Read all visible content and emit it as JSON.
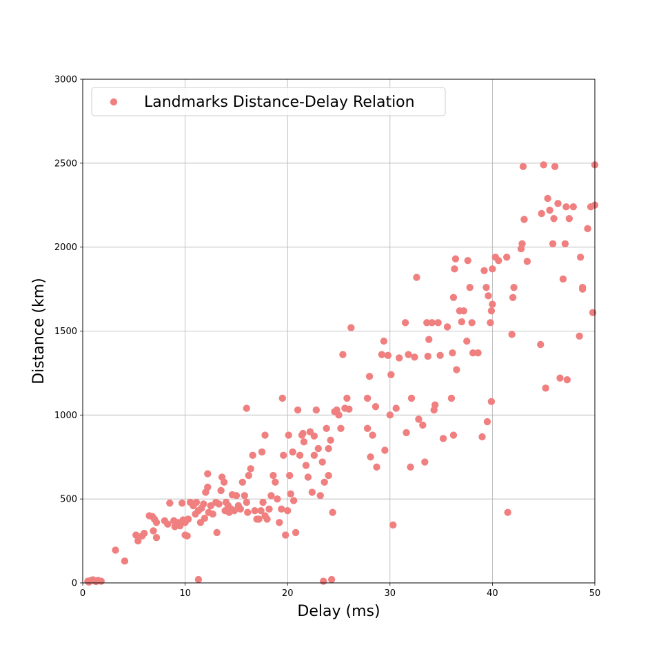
{
  "chart_data": {
    "type": "scatter",
    "title": "",
    "xlabel": "Delay (ms)",
    "ylabel": "Distance (km)",
    "xlim": [
      0,
      50
    ],
    "ylim": [
      0,
      3000
    ],
    "xticks": [
      "0",
      "10",
      "20",
      "30",
      "40",
      "50"
    ],
    "yticks": [
      "0",
      "500",
      "1000",
      "1500",
      "2000",
      "2500",
      "3000"
    ],
    "grid": true,
    "legend_position": "top-left",
    "series": [
      {
        "name": "Landmarks Distance-Delay Relation",
        "color": "#f08080",
        "points": [
          [
            0.5,
            10
          ],
          [
            0.8,
            15
          ],
          [
            1.0,
            18
          ],
          [
            1.2,
            12
          ],
          [
            1.5,
            15
          ],
          [
            1.8,
            10
          ],
          [
            0.6,
            5
          ],
          [
            1.3,
            8
          ],
          [
            3.2,
            195
          ],
          [
            4.1,
            130
          ],
          [
            5.2,
            285
          ],
          [
            5.4,
            250
          ],
          [
            5.8,
            280
          ],
          [
            6.0,
            295
          ],
          [
            6.5,
            400
          ],
          [
            6.8,
            395
          ],
          [
            7.0,
            380
          ],
          [
            7.2,
            360
          ],
          [
            6.9,
            310
          ],
          [
            7.2,
            270
          ],
          [
            8.0,
            370
          ],
          [
            8.3,
            350
          ],
          [
            8.5,
            475
          ],
          [
            8.9,
            370
          ],
          [
            9.0,
            335
          ],
          [
            9.3,
            360
          ],
          [
            9.5,
            340
          ],
          [
            9.7,
            475
          ],
          [
            9.8,
            375
          ],
          [
            10.0,
            360
          ],
          [
            10.0,
            285
          ],
          [
            10.2,
            280
          ],
          [
            10.3,
            380
          ],
          [
            10.5,
            480
          ],
          [
            10.8,
            460
          ],
          [
            11.0,
            410
          ],
          [
            11.1,
            480
          ],
          [
            11.3,
            430
          ],
          [
            11.5,
            360
          ],
          [
            11.6,
            445
          ],
          [
            11.8,
            470
          ],
          [
            11.9,
            385
          ],
          [
            12.0,
            540
          ],
          [
            12.2,
            570
          ],
          [
            12.3,
            420
          ],
          [
            12.5,
            460
          ],
          [
            12.7,
            410
          ],
          [
            13.0,
            480
          ],
          [
            13.1,
            300
          ],
          [
            13.3,
            470
          ],
          [
            13.5,
            550
          ],
          [
            13.6,
            630
          ],
          [
            13.8,
            600
          ],
          [
            14.0,
            480
          ],
          [
            14.2,
            460
          ],
          [
            14.3,
            420
          ],
          [
            14.5,
            440
          ],
          [
            14.8,
            430
          ],
          [
            15.0,
            520
          ],
          [
            15.2,
            460
          ],
          [
            15.4,
            440
          ],
          [
            15.6,
            600
          ],
          [
            15.8,
            520
          ],
          [
            16.0,
            480
          ],
          [
            16.1,
            420
          ],
          [
            16.2,
            640
          ],
          [
            16.4,
            680
          ],
          [
            16.6,
            760
          ],
          [
            16.8,
            430
          ],
          [
            17.0,
            380
          ],
          [
            17.2,
            380
          ],
          [
            17.4,
            430
          ],
          [
            17.5,
            780
          ],
          [
            17.6,
            480
          ],
          [
            17.8,
            400
          ],
          [
            18.0,
            380
          ],
          [
            18.2,
            440
          ],
          [
            18.4,
            520
          ],
          [
            18.6,
            640
          ],
          [
            18.8,
            600
          ],
          [
            19.0,
            500
          ],
          [
            19.2,
            360
          ],
          [
            19.4,
            440
          ],
          [
            19.6,
            760
          ],
          [
            19.8,
            285
          ],
          [
            20.0,
            430
          ],
          [
            20.1,
            880
          ],
          [
            20.2,
            640
          ],
          [
            20.3,
            530
          ],
          [
            20.5,
            780
          ],
          [
            20.6,
            490
          ],
          [
            20.8,
            300
          ],
          [
            21.0,
            1030
          ],
          [
            21.2,
            760
          ],
          [
            21.4,
            880
          ],
          [
            21.6,
            840
          ],
          [
            21.8,
            700
          ],
          [
            22.0,
            630
          ],
          [
            22.2,
            900
          ],
          [
            22.4,
            540
          ],
          [
            22.6,
            760
          ],
          [
            22.8,
            1030
          ],
          [
            23.0,
            800
          ],
          [
            23.2,
            520
          ],
          [
            23.4,
            720
          ],
          [
            23.6,
            600
          ],
          [
            23.8,
            920
          ],
          [
            24.0,
            640
          ],
          [
            24.2,
            850
          ],
          [
            24.4,
            420
          ],
          [
            24.6,
            1020
          ],
          [
            24.8,
            1030
          ],
          [
            25.0,
            1000
          ],
          [
            25.2,
            920
          ],
          [
            25.4,
            1360
          ],
          [
            25.6,
            1040
          ],
          [
            25.8,
            1100
          ],
          [
            26.0,
            1035
          ],
          [
            26.2,
            1520
          ],
          [
            27.8,
            1100
          ],
          [
            28.0,
            1230
          ],
          [
            28.1,
            750
          ],
          [
            28.3,
            880
          ],
          [
            28.6,
            1050
          ],
          [
            28.7,
            690
          ],
          [
            29.2,
            1360
          ],
          [
            29.4,
            1440
          ],
          [
            29.5,
            790
          ],
          [
            29.8,
            1355
          ],
          [
            30.0,
            1000
          ],
          [
            30.1,
            1240
          ],
          [
            30.3,
            345
          ],
          [
            30.6,
            1040
          ],
          [
            30.9,
            1340
          ],
          [
            31.5,
            1550
          ],
          [
            31.6,
            895
          ],
          [
            31.8,
            1360
          ],
          [
            32.0,
            690
          ],
          [
            32.1,
            1100
          ],
          [
            32.4,
            1345
          ],
          [
            32.6,
            1820
          ],
          [
            32.8,
            975
          ],
          [
            33.2,
            940
          ],
          [
            33.4,
            720
          ],
          [
            33.6,
            1550
          ],
          [
            33.7,
            1350
          ],
          [
            33.8,
            1450
          ],
          [
            34.1,
            1550
          ],
          [
            34.3,
            1030
          ],
          [
            34.4,
            1060
          ],
          [
            34.7,
            1550
          ],
          [
            34.9,
            1355
          ],
          [
            35.2,
            860
          ],
          [
            35.6,
            1525
          ],
          [
            36.0,
            1100
          ],
          [
            36.1,
            1370
          ],
          [
            36.2,
            880
          ],
          [
            36.3,
            1870
          ],
          [
            36.4,
            1930
          ],
          [
            36.5,
            1270
          ],
          [
            36.8,
            1620
          ],
          [
            37.0,
            1555
          ],
          [
            37.2,
            1620
          ],
          [
            37.5,
            1440
          ],
          [
            37.6,
            1920
          ],
          [
            37.8,
            1760
          ],
          [
            38.0,
            1550
          ],
          [
            38.1,
            1370
          ],
          [
            38.6,
            1370
          ],
          [
            39.0,
            870
          ],
          [
            39.2,
            1860
          ],
          [
            39.4,
            1760
          ],
          [
            39.5,
            960
          ],
          [
            39.6,
            1710
          ],
          [
            39.8,
            1550
          ],
          [
            39.9,
            1620
          ],
          [
            40.0,
            1660
          ],
          [
            40.0,
            1870
          ],
          [
            40.3,
            1940
          ],
          [
            40.6,
            1920
          ],
          [
            41.4,
            1940
          ],
          [
            41.5,
            420
          ],
          [
            41.9,
            1480
          ],
          [
            42.0,
            1700
          ],
          [
            42.1,
            1760
          ],
          [
            42.8,
            1990
          ],
          [
            42.9,
            2020
          ],
          [
            43.0,
            2480
          ],
          [
            43.1,
            2165
          ],
          [
            43.4,
            1915
          ],
          [
            44.7,
            1420
          ],
          [
            44.8,
            2200
          ],
          [
            45.0,
            2490
          ],
          [
            45.2,
            1160
          ],
          [
            45.4,
            2290
          ],
          [
            45.6,
            2220
          ],
          [
            45.9,
            2020
          ],
          [
            46.0,
            2170
          ],
          [
            46.1,
            2480
          ],
          [
            46.4,
            2260
          ],
          [
            46.6,
            1220
          ],
          [
            46.9,
            1810
          ],
          [
            47.1,
            2020
          ],
          [
            47.3,
            1210
          ],
          [
            47.5,
            2170
          ],
          [
            47.9,
            2240
          ],
          [
            48.5,
            1470
          ],
          [
            48.6,
            1940
          ],
          [
            48.8,
            1760
          ],
          [
            49.3,
            2110
          ],
          [
            49.6,
            2240
          ],
          [
            49.8,
            1610
          ],
          [
            50.0,
            2490
          ],
          [
            50.0,
            2250
          ],
          [
            11.3,
            20
          ],
          [
            23.5,
            10
          ],
          [
            24.3,
            20
          ],
          [
            36.2,
            1700
          ],
          [
            39.9,
            1080
          ],
          [
            47.2,
            2240
          ],
          [
            48.8,
            1750
          ],
          [
            10.8,
            460
          ],
          [
            12.2,
            650
          ],
          [
            13.9,
            430
          ],
          [
            14.6,
            525
          ],
          [
            16.0,
            1040
          ],
          [
            17.8,
            880
          ],
          [
            19.5,
            1100
          ],
          [
            21.5,
            890
          ],
          [
            22.6,
            875
          ],
          [
            24.0,
            800
          ],
          [
            27.8,
            920
          ]
        ]
      }
    ]
  }
}
